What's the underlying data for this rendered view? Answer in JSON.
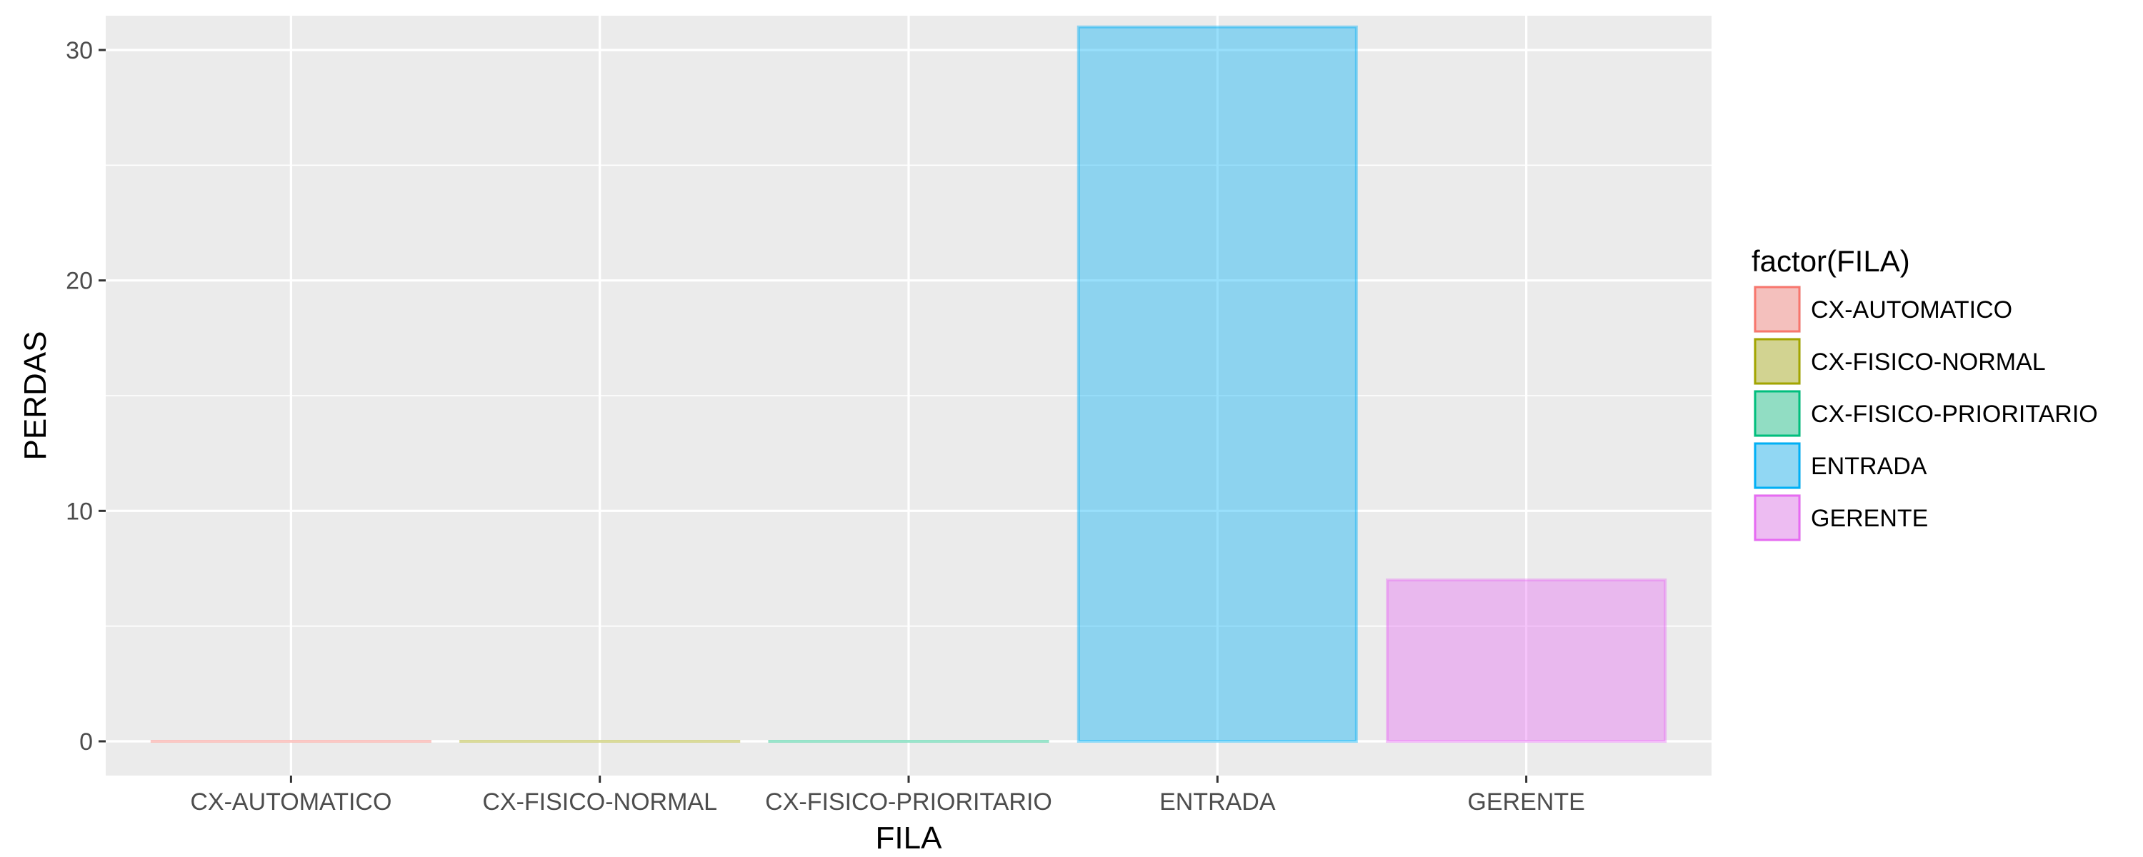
{
  "chart_data": {
    "type": "bar",
    "title": "",
    "xlabel": "FILA",
    "ylabel": "PERDAS",
    "categories": [
      "CX-AUTOMATICO",
      "CX-FISICO-NORMAL",
      "CX-FISICO-PRIORITARIO",
      "ENTRADA",
      "GERENTE"
    ],
    "values": [
      0,
      0,
      0,
      31,
      7
    ],
    "colors": [
      "#F8766D",
      "#A3A500",
      "#00BF7D",
      "#00B0F6",
      "#E76BF3"
    ],
    "ylim": [
      0,
      32.5
    ],
    "yticks": [
      0,
      10,
      20,
      30
    ],
    "yticklabels": [
      "0",
      "10",
      "20",
      "30"
    ],
    "grid": true,
    "legend": {
      "title": "factor(FILA)",
      "placement": "right",
      "entries": [
        "CX-AUTOMATICO",
        "CX-FISICO-NORMAL",
        "CX-FISICO-PRIORITARIO",
        "ENTRADA",
        "GERENTE"
      ]
    }
  }
}
